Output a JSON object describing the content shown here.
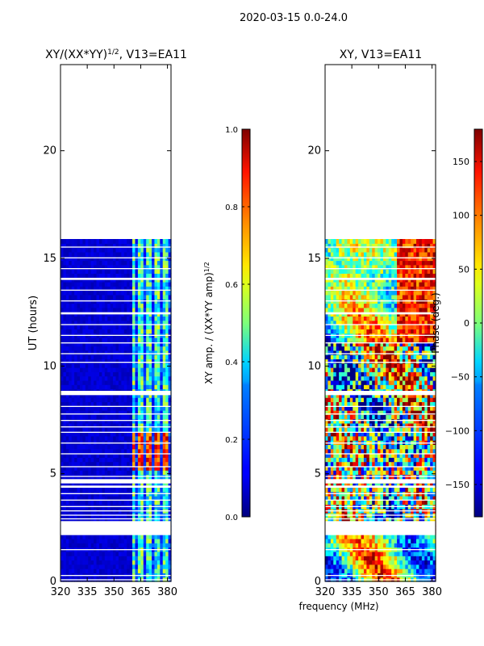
{
  "suptitle": "2020-03-15 0.0-24.0",
  "xlabel_shared": "frequency (MHz)",
  "colors": {
    "empty": "#ffffff",
    "gap": "#ffffff",
    "frame": "#000000"
  },
  "chart_data": [
    {
      "type": "heatmap",
      "title_main": "XY/(XX*YY)",
      "title_exp": "1/2",
      "title_rest": ", V13=EA11",
      "ylabel": "UT (hours)",
      "xlim": [
        320,
        382
      ],
      "ylim": [
        0,
        24
      ],
      "xticks": [
        320,
        335,
        350,
        365,
        380
      ],
      "xtick_labels": [
        "320",
        "335",
        "350",
        "365",
        "380"
      ],
      "yticks": [
        0,
        5,
        10,
        15,
        20
      ],
      "ytick_labels": [
        "0",
        "5",
        "10",
        "15",
        "20"
      ],
      "data_time_range": [
        0,
        15.9
      ],
      "low_value_band_mhz": [
        320,
        360
      ],
      "high_value_band_mhz": [
        360,
        382
      ],
      "high_value_time_window": [
        5.0,
        6.9
      ],
      "colorbar": {
        "label_main": "XY amp. / (XX*YY amp)",
        "label_exp": "1/2",
        "range": [
          0.0,
          1.0
        ],
        "ticks": [
          0.0,
          0.2,
          0.4,
          0.6,
          0.8,
          1.0
        ],
        "tick_labels": [
          "0.0",
          "0.2",
          "0.4",
          "0.6",
          "0.8",
          "1.0"
        ],
        "colormap": "jet"
      }
    },
    {
      "type": "heatmap",
      "title": "XY, V13=EA11",
      "xlim": [
        320,
        382
      ],
      "ylim": [
        0,
        24
      ],
      "xticks": [
        320,
        335,
        350,
        365,
        380
      ],
      "xtick_labels": [
        "320",
        "335",
        "350",
        "365",
        "380"
      ],
      "yticks": [
        0,
        5,
        10,
        15,
        20
      ],
      "ytick_labels": [
        "0",
        "5",
        "10",
        "15",
        "20"
      ],
      "data_time_range": [
        0,
        15.9
      ],
      "colorbar": {
        "label": "Phase (deg.)",
        "range": [
          -180,
          180
        ],
        "ticks": [
          -150,
          -100,
          -50,
          0,
          50,
          100,
          150
        ],
        "tick_labels": [
          "−150",
          "−100",
          "−50",
          "0",
          "50",
          "100",
          "150"
        ],
        "colormap": "jet"
      }
    }
  ],
  "time_gaps_hours": [
    [
      2.15,
      2.8
    ],
    [
      2.88,
      2.93
    ],
    [
      3.05,
      3.1
    ],
    [
      3.25,
      3.3
    ],
    [
      3.45,
      3.5
    ],
    [
      3.75,
      3.8
    ],
    [
      4.05,
      4.1
    ],
    [
      4.35,
      4.45
    ],
    [
      4.55,
      4.75
    ],
    [
      4.85,
      4.9
    ],
    [
      5.3,
      5.35
    ],
    [
      5.9,
      5.95
    ],
    [
      6.4,
      6.45
    ],
    [
      6.9,
      6.95
    ],
    [
      7.15,
      7.2
    ],
    [
      7.45,
      7.5
    ],
    [
      7.75,
      7.8
    ],
    [
      8.1,
      8.15
    ],
    [
      8.65,
      8.85
    ],
    [
      10.15,
      10.2
    ],
    [
      10.55,
      10.6
    ],
    [
      11.05,
      11.1
    ],
    [
      11.4,
      11.45
    ],
    [
      11.9,
      11.95
    ],
    [
      12.4,
      12.5
    ],
    [
      13.0,
      13.05
    ],
    [
      13.5,
      13.55
    ],
    [
      14.0,
      14.1
    ],
    [
      14.5,
      14.55
    ],
    [
      15.0,
      15.05
    ],
    [
      15.5,
      15.55
    ],
    [
      1.45,
      1.5
    ],
    [
      0.25,
      0.3
    ],
    [
      0.05,
      0.1
    ]
  ]
}
